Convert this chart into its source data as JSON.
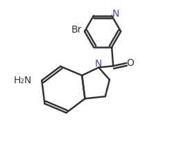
{
  "background_color": "#ffffff",
  "line_color": "#333333",
  "n_color": "#4444cc",
  "lw": 1.8,
  "figsize": [
    2.48,
    2.12
  ],
  "dpi": 100,
  "xlim": [
    0.0,
    1.0
  ],
  "ylim": [
    0.0,
    1.0
  ]
}
